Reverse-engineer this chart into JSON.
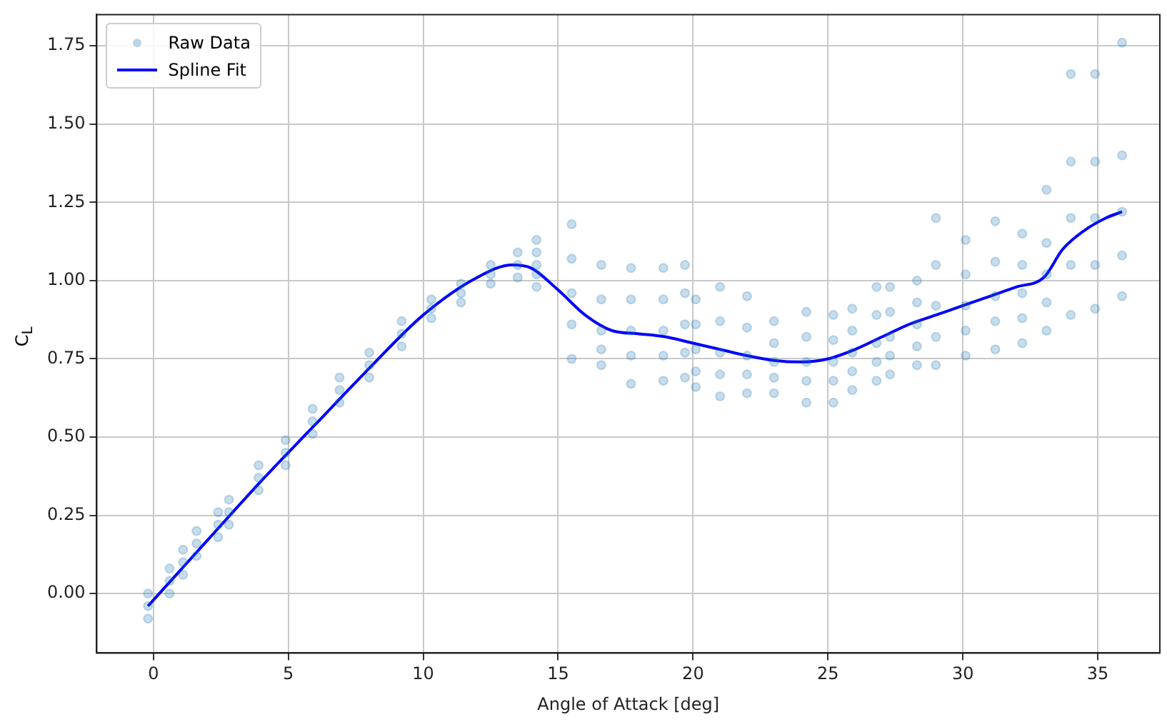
{
  "chart_data": {
    "type": "scatter",
    "xlabel": "Angle of Attack [deg]",
    "ylabel": "C$_{L}$",
    "xlim": [
      -2.1,
      37.3
    ],
    "ylim": [
      -0.19,
      1.85
    ],
    "xticks": [
      0,
      5,
      10,
      15,
      20,
      25,
      30,
      35
    ],
    "yticks": [
      {
        "value": 0,
        "label": "0.00"
      },
      0.25,
      {
        "value": 0.5,
        "label": "0.50"
      },
      0.75,
      {
        "value": 1,
        "label": "1.00"
      },
      1.25,
      {
        "value": 1.5,
        "label": "1.50"
      },
      1.75
    ],
    "grid": true,
    "legend": "top left",
    "series": [
      {
        "name": "Raw Data",
        "marker": "circle",
        "color": "#1f77b4",
        "x": [
          -0.2,
          -0.2,
          -0.2,
          0.6,
          0.6,
          0.6,
          1.1,
          1.1,
          1.1,
          1.6,
          1.6,
          1.6,
          2.4,
          2.4,
          2.4,
          2.8,
          2.8,
          2.8,
          3.9,
          3.9,
          3.9,
          4.9,
          4.9,
          4.9,
          5.9,
          5.9,
          5.9,
          6.9,
          6.9,
          6.9,
          8.0,
          8.0,
          8.0,
          9.2,
          9.2,
          9.2,
          10.3,
          10.3,
          10.3,
          11.4,
          11.4,
          11.4,
          12.5,
          12.5,
          12.5,
          13.5,
          13.5,
          13.5,
          14.2,
          14.2,
          14.2,
          14.2,
          14.2,
          15.5,
          15.5,
          15.5,
          15.5,
          15.5,
          16.6,
          16.6,
          16.6,
          16.6,
          16.6,
          17.7,
          17.7,
          17.7,
          17.7,
          17.7,
          18.9,
          18.9,
          18.9,
          18.9,
          18.9,
          19.7,
          19.7,
          19.7,
          19.7,
          19.7,
          20.1,
          20.1,
          20.1,
          20.1,
          20.1,
          21.0,
          21.0,
          21.0,
          21.0,
          21.0,
          22.0,
          22.0,
          22.0,
          22.0,
          22.0,
          23.0,
          23.0,
          23.0,
          23.0,
          23.0,
          24.2,
          24.2,
          24.2,
          24.2,
          24.2,
          25.2,
          25.2,
          25.2,
          25.2,
          25.2,
          25.9,
          25.9,
          25.9,
          25.9,
          25.9,
          26.8,
          26.8,
          26.8,
          26.8,
          26.8,
          27.3,
          27.3,
          27.3,
          27.3,
          27.3,
          28.3,
          28.3,
          28.3,
          28.3,
          28.3,
          29.0,
          29.0,
          29.0,
          29.0,
          29.0,
          30.1,
          30.1,
          30.1,
          30.1,
          30.1,
          31.2,
          31.2,
          31.2,
          31.2,
          31.2,
          32.2,
          32.2,
          32.2,
          32.2,
          32.2,
          33.1,
          33.1,
          33.1,
          33.1,
          33.1,
          34.0,
          34.0,
          34.0,
          34.0,
          34.0,
          34.9,
          34.9,
          34.9,
          34.9,
          34.9,
          35.9,
          35.9,
          35.9,
          35.9,
          35.9
        ],
        "values": [
          -0.08,
          -0.04,
          0.0,
          0.0,
          0.04,
          0.08,
          0.06,
          0.1,
          0.14,
          0.12,
          0.16,
          0.2,
          0.18,
          0.22,
          0.26,
          0.22,
          0.26,
          0.3,
          0.33,
          0.37,
          0.41,
          0.41,
          0.45,
          0.49,
          0.51,
          0.55,
          0.59,
          0.61,
          0.65,
          0.69,
          0.69,
          0.73,
          0.77,
          0.79,
          0.83,
          0.87,
          0.88,
          0.91,
          0.94,
          0.93,
          0.96,
          0.99,
          0.99,
          1.02,
          1.05,
          1.01,
          1.05,
          1.09,
          0.98,
          1.02,
          1.05,
          1.09,
          1.13,
          0.75,
          0.86,
          0.96,
          1.07,
          1.18,
          0.73,
          0.78,
          0.84,
          0.94,
          1.05,
          0.67,
          0.76,
          0.84,
          0.94,
          1.04,
          0.68,
          0.76,
          0.84,
          0.94,
          1.04,
          0.69,
          0.77,
          0.86,
          0.96,
          1.05,
          0.66,
          0.71,
          0.78,
          0.86,
          0.94,
          0.63,
          0.7,
          0.77,
          0.87,
          0.98,
          0.64,
          0.7,
          0.76,
          0.85,
          0.95,
          0.64,
          0.69,
          0.74,
          0.8,
          0.87,
          0.61,
          0.68,
          0.74,
          0.82,
          0.9,
          0.61,
          0.68,
          0.74,
          0.81,
          0.89,
          0.65,
          0.71,
          0.77,
          0.84,
          0.91,
          0.68,
          0.74,
          0.8,
          0.89,
          0.98,
          0.7,
          0.76,
          0.82,
          0.9,
          0.98,
          0.73,
          0.79,
          0.86,
          0.93,
          1.0,
          0.73,
          0.82,
          0.92,
          1.05,
          1.2,
          0.76,
          0.84,
          0.92,
          1.02,
          1.13,
          0.78,
          0.87,
          0.95,
          1.06,
          1.19,
          0.8,
          0.88,
          0.96,
          1.05,
          1.15,
          0.84,
          0.93,
          1.02,
          1.12,
          1.29,
          0.89,
          1.05,
          1.2,
          1.38,
          1.66,
          0.91,
          1.05,
          1.2,
          1.38,
          1.66,
          0.95,
          1.08,
          1.22,
          1.4,
          1.76
        ]
      },
      {
        "name": "Spline Fit",
        "type": "line",
        "marker": "none",
        "line_style": "solid",
        "color": "#0000ff",
        "x": [
          -0.2,
          2,
          4,
          6,
          8,
          10,
          12,
          13.3,
          14,
          15,
          16,
          17,
          18,
          19,
          20,
          21,
          22,
          23,
          24,
          25,
          26,
          27,
          28,
          29,
          30,
          31,
          32,
          33,
          33.7,
          34.5,
          35.3,
          35.9
        ],
        "values": [
          -0.04,
          0.17,
          0.36,
          0.54,
          0.72,
          0.89,
          1.01,
          1.05,
          1.04,
          0.97,
          0.89,
          0.84,
          0.83,
          0.82,
          0.8,
          0.78,
          0.76,
          0.745,
          0.74,
          0.75,
          0.78,
          0.82,
          0.86,
          0.89,
          0.92,
          0.95,
          0.98,
          1.01,
          1.1,
          1.16,
          1.2,
          1.22
        ]
      }
    ]
  }
}
